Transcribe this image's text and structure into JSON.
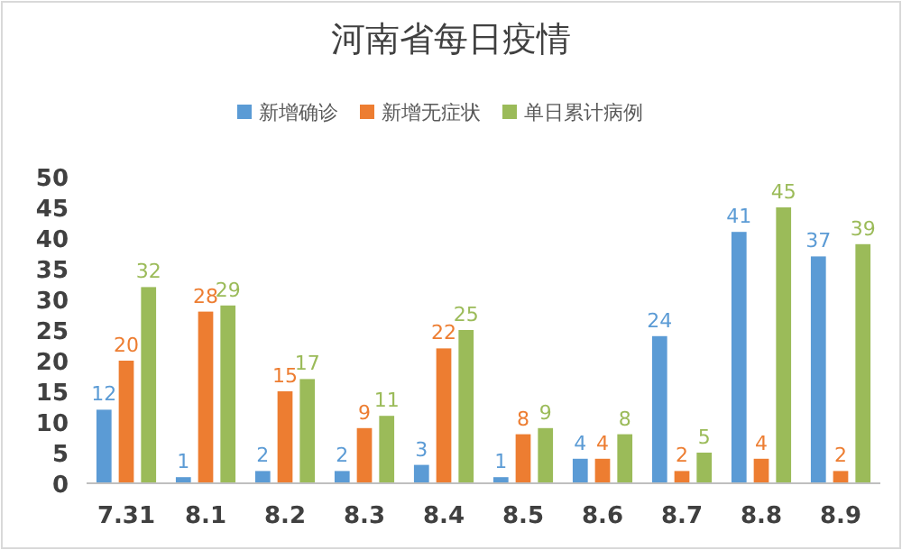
{
  "chart_data": {
    "type": "bar",
    "title": "河南省每日疫情",
    "categories": [
      "7.31",
      "8.1",
      "8.2",
      "8.3",
      "8.4",
      "8.5",
      "8.6",
      "8.7",
      "8.8",
      "8.9"
    ],
    "series": [
      {
        "name": "新增确诊",
        "color": "#5b9bd5",
        "values": [
          12,
          1,
          2,
          2,
          3,
          1,
          4,
          24,
          41,
          37
        ]
      },
      {
        "name": "新增无症状",
        "color": "#ed7d31",
        "values": [
          20,
          28,
          15,
          9,
          22,
          8,
          4,
          2,
          4,
          2
        ]
      },
      {
        "name": "单日累计病例",
        "color": "#9bbb59",
        "values": [
          32,
          29,
          17,
          11,
          25,
          9,
          8,
          5,
          45,
          39
        ]
      }
    ],
    "ylim": [
      0,
      50
    ],
    "yticks": [
      0,
      5,
      10,
      15,
      20,
      25,
      30,
      35,
      40,
      45,
      50
    ],
    "data_labels": true,
    "legend": "top",
    "grid": false
  }
}
